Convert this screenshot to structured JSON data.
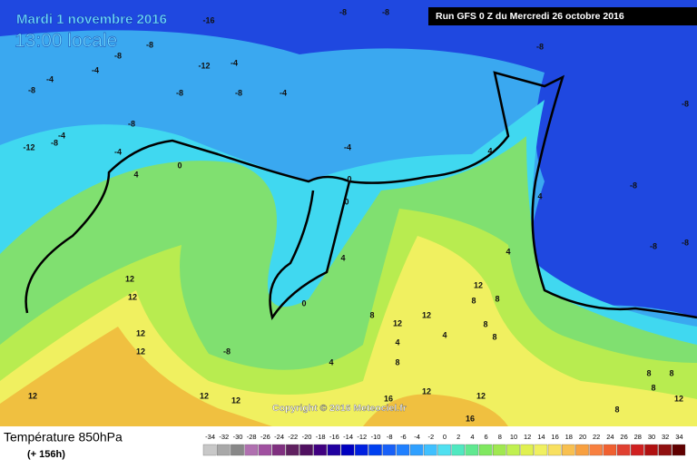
{
  "header": {
    "title": "Mardi 1 novembre 2016",
    "subtitle": "13:00 locale",
    "run": "Run GFS 0 Z du Mercredi 26 octobre 2016"
  },
  "copyright": "Copyright © 2016 Meteociel.fr",
  "footer": {
    "title": "Température 850hPa",
    "subtitle": "(+ 156h)"
  },
  "legend": {
    "values": [
      -34,
      -32,
      -30,
      -28,
      -26,
      -24,
      -22,
      -20,
      -18,
      -16,
      -14,
      -12,
      -10,
      -8,
      -6,
      -4,
      -2,
      0,
      2,
      4,
      6,
      8,
      10,
      12,
      14,
      16,
      18,
      20,
      22,
      24,
      26,
      28,
      30,
      32,
      34
    ]
  },
  "map_labels": [
    "-16",
    "-8",
    "-8",
    "-8",
    "-8",
    "-4",
    "-12",
    "-4",
    "-4",
    "-8",
    "-8",
    "-8",
    "-4",
    "-8",
    "-4",
    "-12",
    "-8",
    "-4",
    "-4",
    "4",
    "4",
    "0",
    "0",
    "0",
    "-8",
    "4",
    "-8",
    "-8",
    "-8",
    "-8",
    "4",
    "4",
    "12",
    "12",
    "12",
    "8",
    "8",
    "0",
    "8",
    "12",
    "12",
    "12",
    "8",
    "8",
    "4",
    "4",
    "12",
    "-8",
    "8",
    "4",
    "12",
    "12",
    "12",
    "12",
    "16",
    "12",
    "16",
    "8",
    "8",
    "8",
    "8",
    "12"
  ]
}
